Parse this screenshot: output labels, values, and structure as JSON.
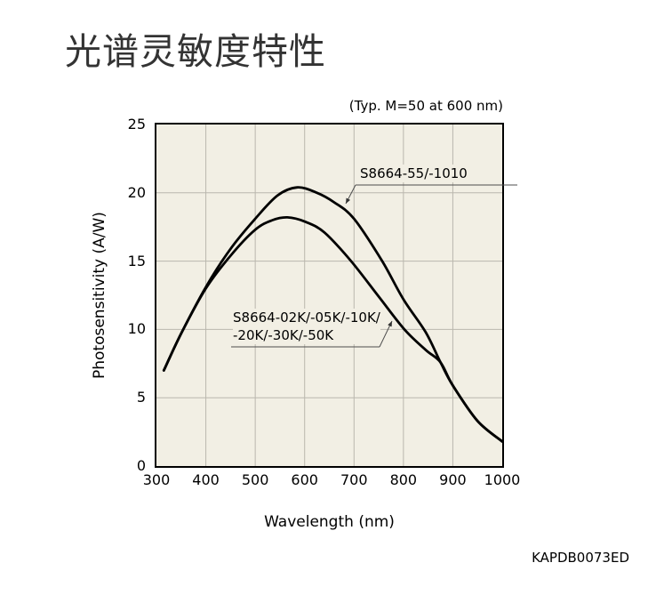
{
  "title": "光谱灵敏度特性",
  "doc_code": "KAPDB0073ED",
  "chart_data": {
    "type": "line",
    "note": "(Typ. M=50 at 600 nm)",
    "xlabel": "Wavelength (nm)",
    "ylabel": "Photosensitivity (A/W)",
    "xlim": [
      300,
      1000
    ],
    "ylim": [
      0,
      25
    ],
    "x_ticks": [
      300,
      400,
      500,
      600,
      700,
      800,
      900,
      1000
    ],
    "y_ticks": [
      0,
      5,
      10,
      15,
      20,
      25
    ],
    "grid": true,
    "legend_position": "inline-labels",
    "plot_background": "#f2efe4",
    "grid_color": "#bab7ae",
    "curve_color": "#000000",
    "series": [
      {
        "name": "S8664-55/-1010",
        "label_lines": [
          "S8664-55/-1010"
        ],
        "peak": {
          "wavelength_nm": 585,
          "photosensitivity_aw": 20.4
        },
        "points": [
          [
            315,
            7.0
          ],
          [
            350,
            9.7
          ],
          [
            400,
            13.1
          ],
          [
            450,
            15.9
          ],
          [
            500,
            18.1
          ],
          [
            545,
            19.8
          ],
          [
            585,
            20.4
          ],
          [
            625,
            20.0
          ],
          [
            660,
            19.3
          ],
          [
            700,
            18.1
          ],
          [
            757,
            15.0
          ],
          [
            800,
            12.2
          ],
          [
            845,
            9.8
          ],
          [
            875,
            7.6
          ],
          [
            900,
            5.9
          ],
          [
            950,
            3.3
          ],
          [
            1000,
            1.8
          ]
        ]
      },
      {
        "name": "S8664-02K/-05K/-10K/-20K/-30K/-50K",
        "label_lines": [
          "S8664-02K/-05K/-10K/",
          "-20K/-30K/-50K"
        ],
        "peak": {
          "wavelength_nm": 565,
          "photosensitivity_aw": 18.2
        },
        "points": [
          [
            315,
            7.0
          ],
          [
            350,
            9.7
          ],
          [
            400,
            13.0
          ],
          [
            450,
            15.4
          ],
          [
            500,
            17.3
          ],
          [
            535,
            18.0
          ],
          [
            565,
            18.2
          ],
          [
            600,
            17.9
          ],
          [
            640,
            17.1
          ],
          [
            694,
            15.0
          ],
          [
            750,
            12.4
          ],
          [
            802,
            10.0
          ],
          [
            845,
            8.5
          ],
          [
            875,
            7.6
          ],
          [
            900,
            5.9
          ],
          [
            950,
            3.3
          ],
          [
            1000,
            1.8
          ]
        ]
      }
    ]
  }
}
